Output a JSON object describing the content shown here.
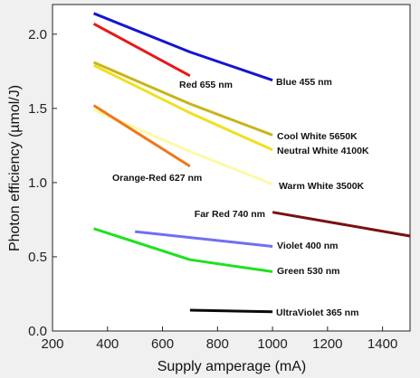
{
  "chart_data": {
    "type": "line",
    "title": "",
    "xlabel": "Supply amperage (mA)",
    "ylabel": "Photon efficiency   (µmol/J)",
    "xlim": [
      200,
      1500
    ],
    "ylim": [
      0,
      2.2
    ],
    "xticks": [
      "200",
      "400",
      "600",
      "800",
      "1000",
      "1200",
      "1400"
    ],
    "yticks": [
      "0.0",
      "0.5",
      "1.0",
      "1.5",
      "2.0"
    ],
    "grid": false,
    "legend": "none",
    "series": [
      {
        "name": "Blue 455 nm",
        "color": "#1515d0",
        "x": [
          350,
          700,
          1000
        ],
        "y": [
          2.14,
          1.88,
          1.69
        ]
      },
      {
        "name": "Red 655 nm",
        "color": "#e81818",
        "x": [
          350,
          700
        ],
        "y": [
          2.07,
          1.72
        ]
      },
      {
        "name": "Cool White 5650K",
        "color": "#c8b41a",
        "x": [
          350,
          700,
          1000
        ],
        "y": [
          1.81,
          1.53,
          1.32
        ]
      },
      {
        "name": "Neutral White 4100K",
        "color": "#f0e020",
        "x": [
          350,
          700,
          1000
        ],
        "y": [
          1.79,
          1.47,
          1.22
        ]
      },
      {
        "name": "Warm White 3500K",
        "color": "#fff8a8",
        "x": [
          350,
          700,
          1000
        ],
        "y": [
          1.49,
          1.21,
          0.99
        ]
      },
      {
        "name": "Orange-Red 627 nm",
        "color": "#f07818",
        "x": [
          350,
          700
        ],
        "y": [
          1.52,
          1.11
        ]
      },
      {
        "name": "Far Red 740 nm",
        "color": "#7a1010",
        "x": [
          1000,
          1500
        ],
        "y": [
          0.8,
          0.64
        ]
      },
      {
        "name": "Violet 400 nm",
        "color": "#7070f0",
        "x": [
          500,
          1000
        ],
        "y": [
          0.67,
          0.57
        ]
      },
      {
        "name": "Green 530 nm",
        "color": "#20e020",
        "x": [
          350,
          700,
          1000
        ],
        "y": [
          0.69,
          0.48,
          0.4
        ]
      },
      {
        "name": "UltraViolet 365 nm",
        "color": "#0a0a0a",
        "x": [
          700,
          1000
        ],
        "y": [
          0.14,
          0.13
        ]
      }
    ]
  }
}
